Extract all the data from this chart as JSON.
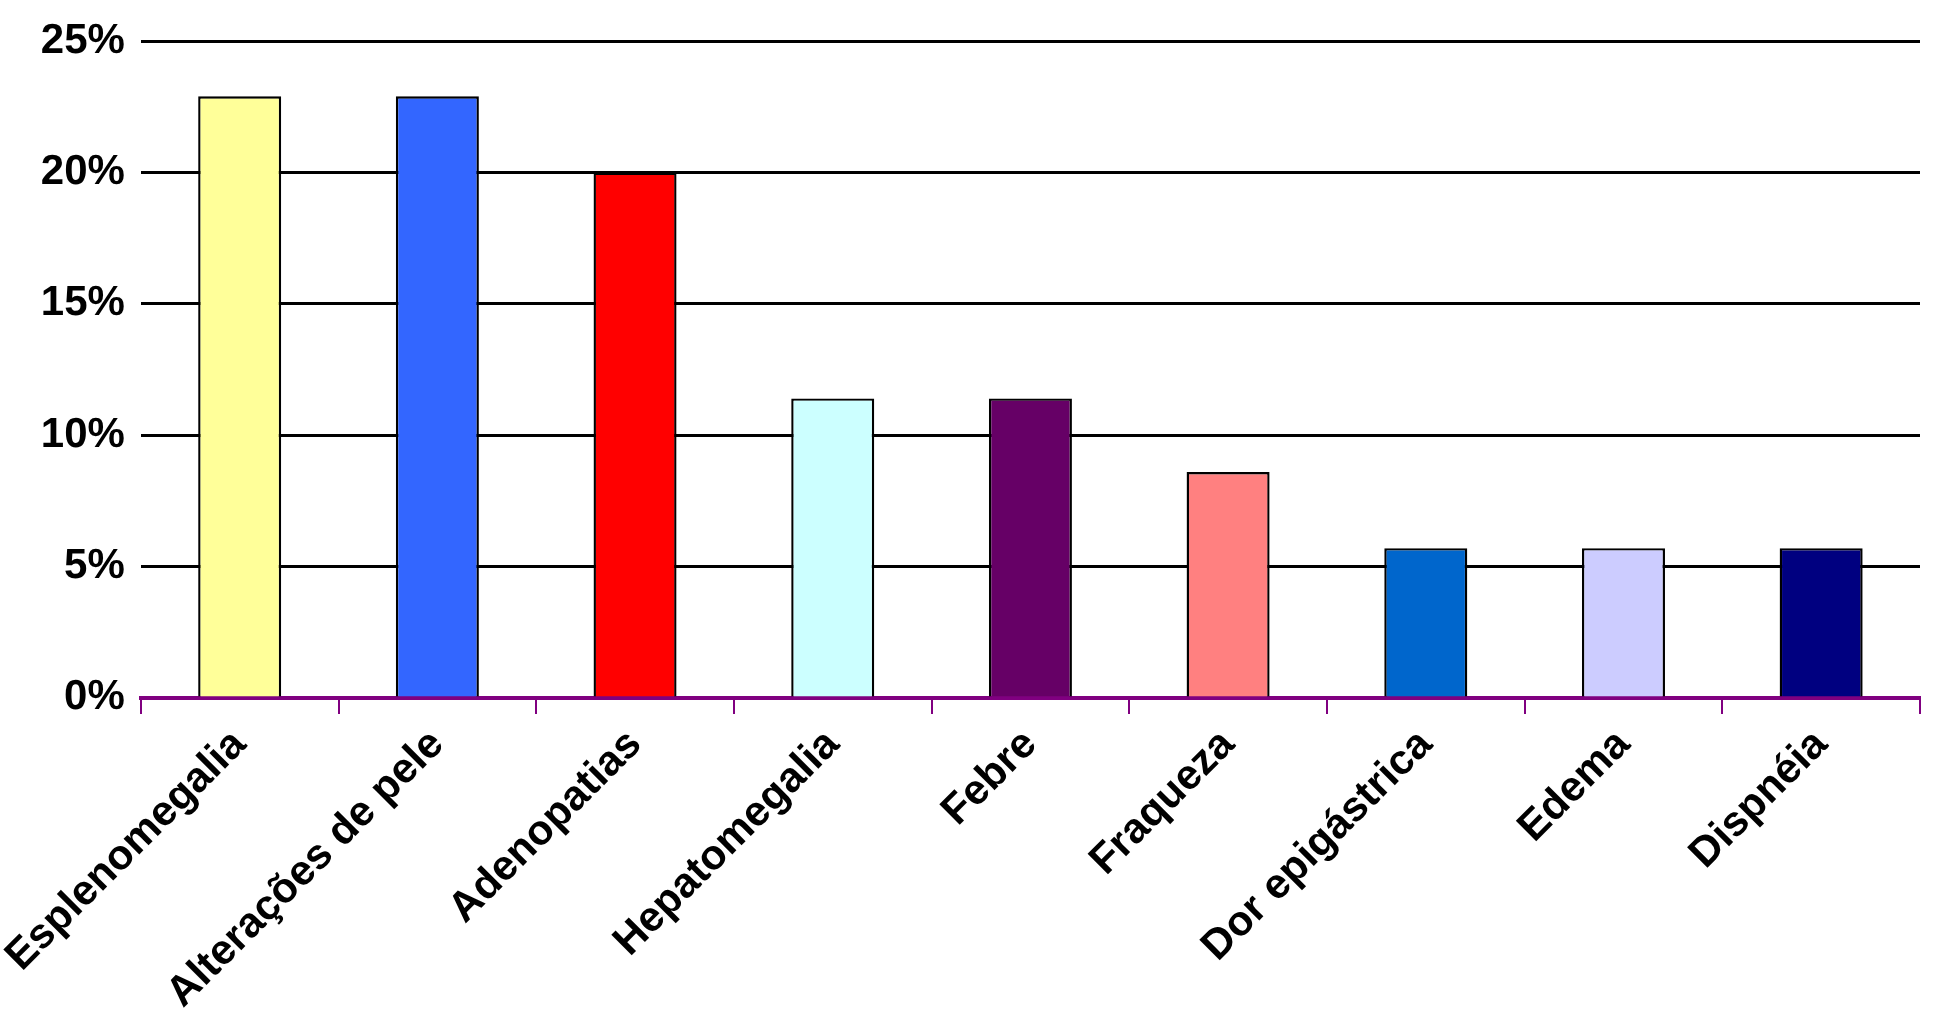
{
  "chart_data": {
    "type": "bar",
    "categories": [
      "Esplenomegalia",
      "Alterações de pele",
      "Adenopatias",
      "Hepatomegalia",
      "Febre",
      "Fraqueza",
      "Dor epigástrica",
      "Edema",
      "Dispnéia"
    ],
    "values": [
      22.9,
      22.9,
      20,
      11.4,
      11.4,
      8.6,
      5.7,
      5.7,
      5.7
    ],
    "colors": [
      "#ffff99",
      "#3366ff",
      "#ff0000",
      "#ccffff",
      "#660066",
      "#ff8080",
      "#0066cc",
      "#ccccff",
      "#000080"
    ],
    "ylim": [
      0,
      25
    ],
    "yticks": [
      {
        "value": 0,
        "label": "0%"
      },
      {
        "value": 5,
        "label": "5%"
      },
      {
        "value": 10,
        "label": "10%"
      },
      {
        "value": 15,
        "label": "15%"
      },
      {
        "value": 20,
        "label": "20%"
      },
      {
        "value": 25,
        "label": "25%"
      }
    ],
    "grid": "y",
    "legend": false
  }
}
